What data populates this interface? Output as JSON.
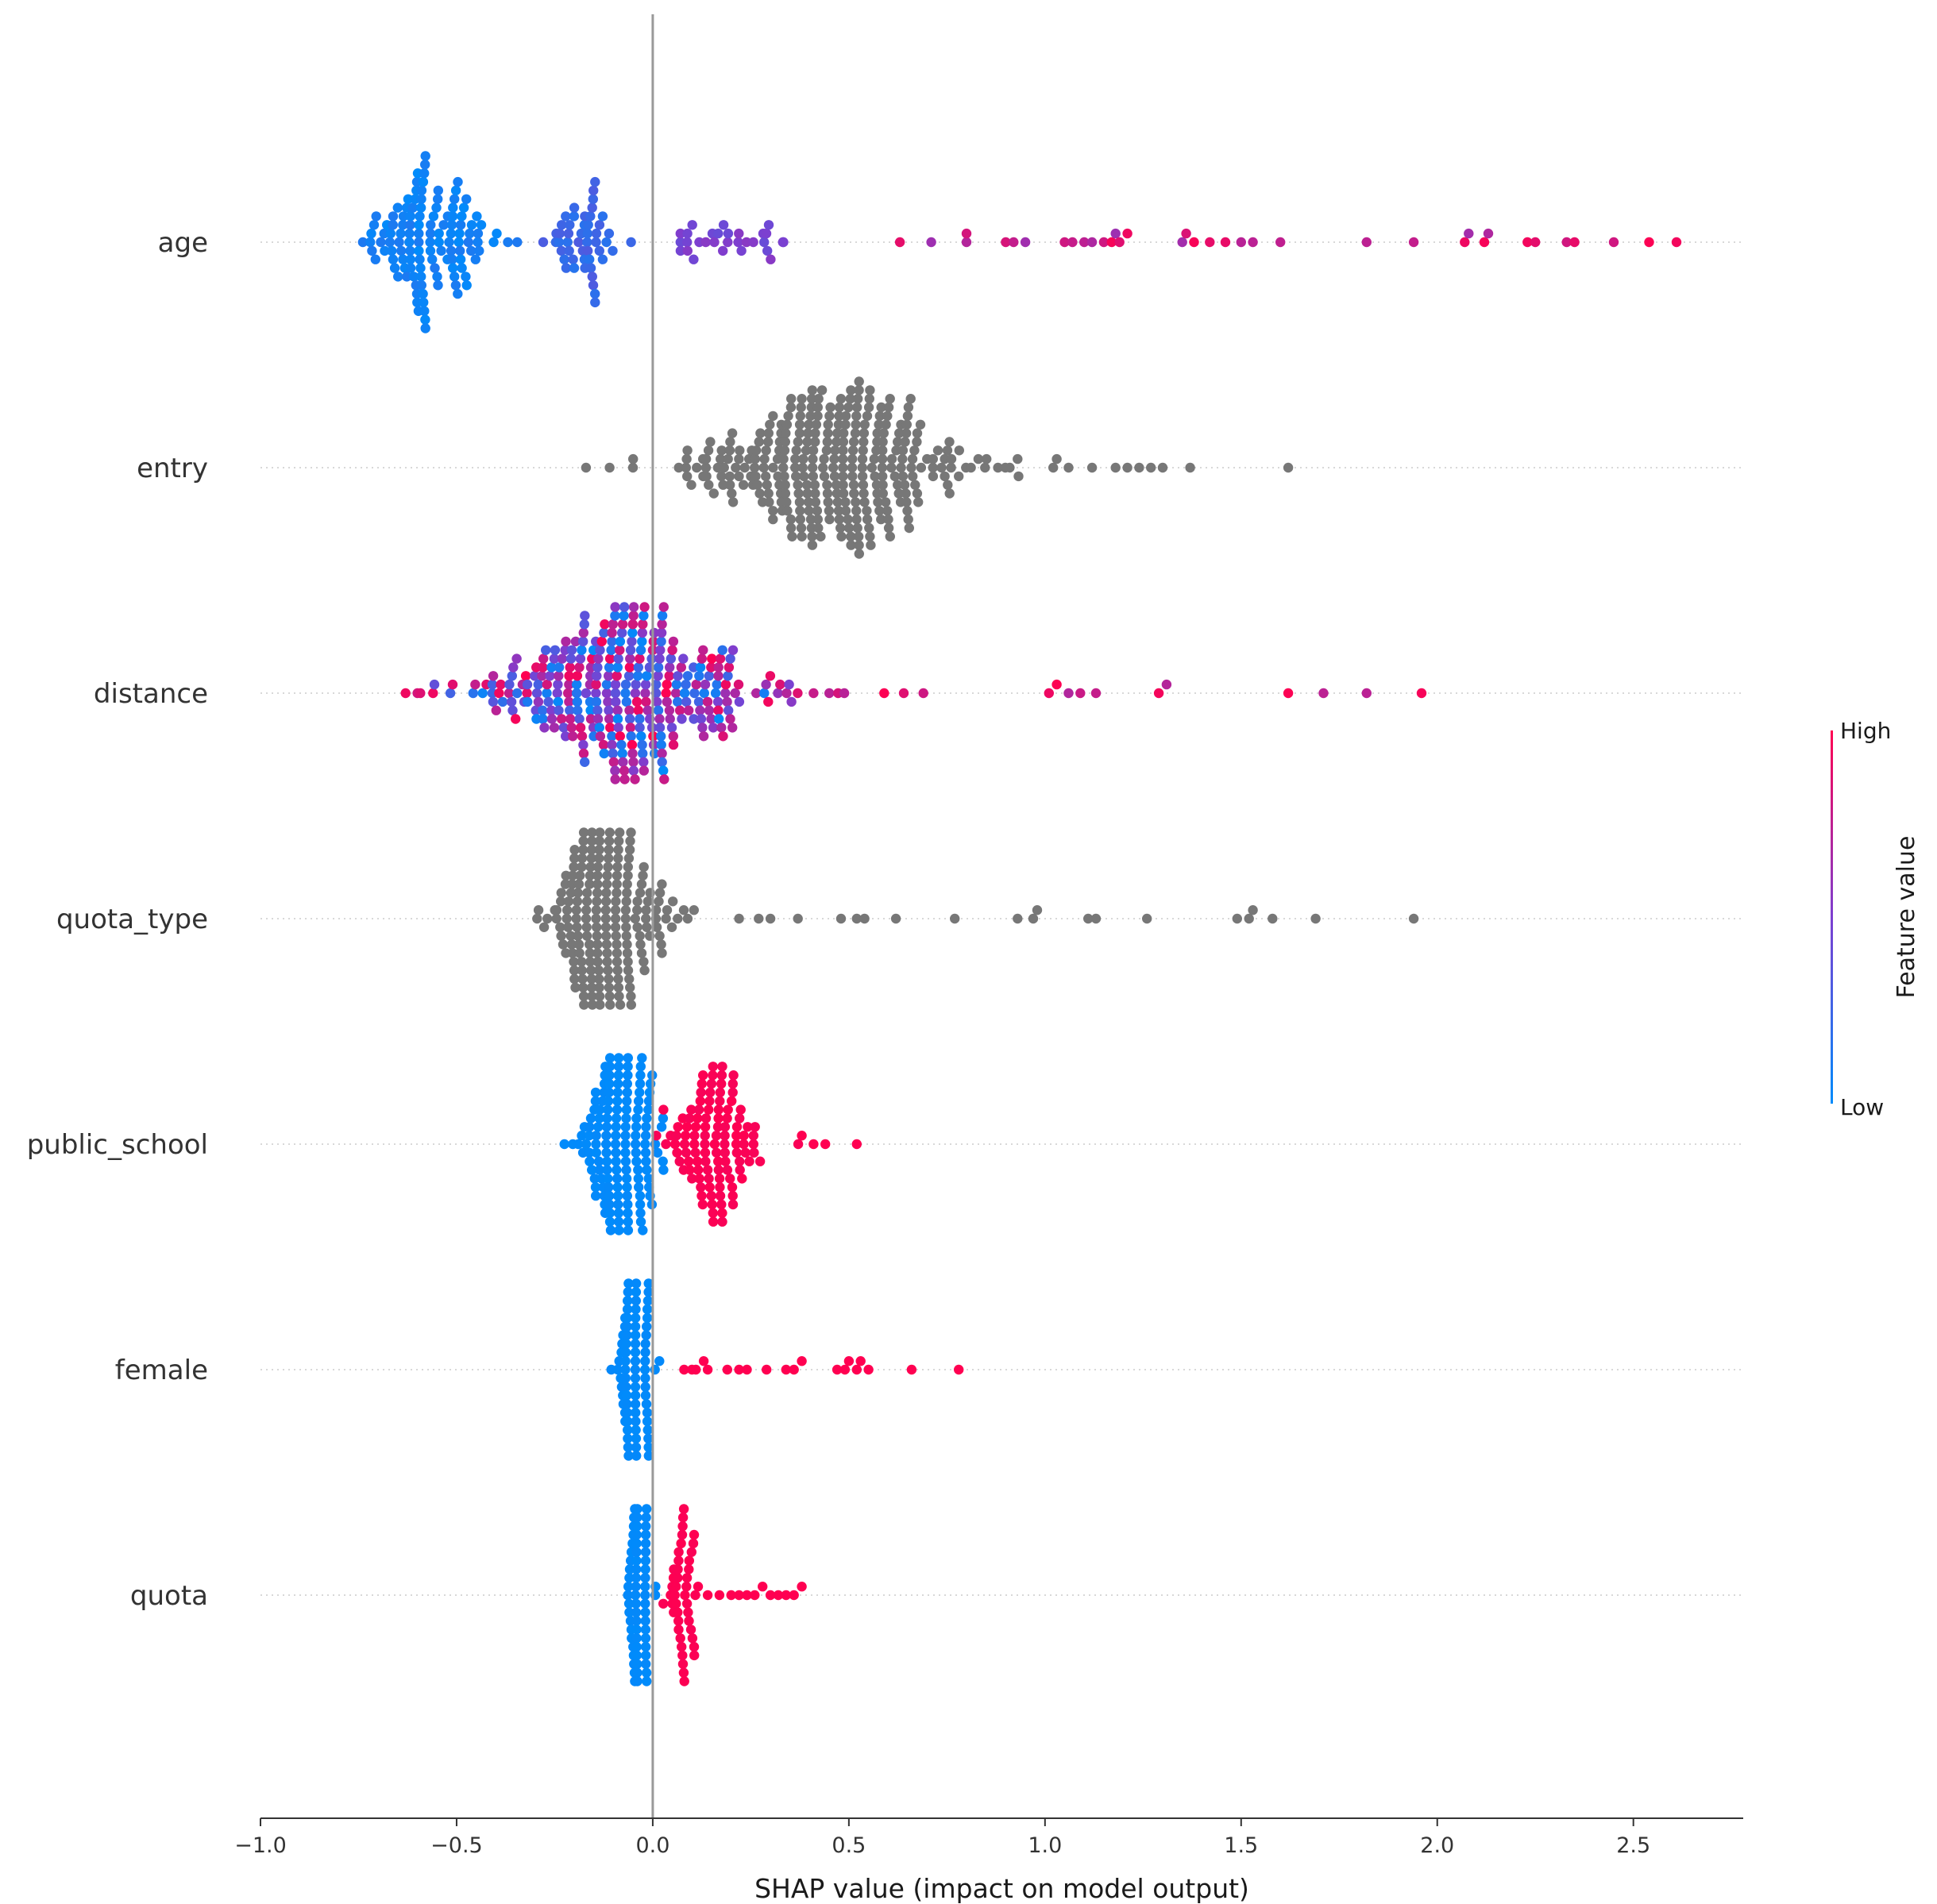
{
  "chart_data": {
    "type": "scatter",
    "subtype": "shap-beeswarm",
    "title": "",
    "xlabel": "SHAP value (impact on model output)",
    "xlim": [
      -1.0,
      2.78
    ],
    "xticks": [
      -1.0,
      -0.5,
      0.0,
      0.5,
      1.0,
      1.5,
      2.0,
      2.5
    ],
    "xtick_labels": [
      "−1.0",
      "−0.5",
      "0.0",
      "0.5",
      "1.0",
      "1.5",
      "2.0",
      "2.5"
    ],
    "reference_line_x": 0.0,
    "colorbar": {
      "title": "Feature value",
      "high_label": "High",
      "low_label": "Low",
      "high_color": "#ff0051",
      "low_color": "#008bfb"
    },
    "colors": {
      "low": "#008bfb",
      "high": "#ff0051",
      "no_value": "#777777",
      "zero_line": "#999999"
    },
    "series": [
      {
        "name": "age",
        "color_mode": "feature_value",
        "clusters": [
          {
            "center": -0.57,
            "spread": 0.17,
            "count": 130,
            "fmin": 0.0,
            "fmax": 0.12,
            "height": 1.0
          },
          {
            "center": -0.17,
            "spread": 0.09,
            "count": 50,
            "fmin": 0.15,
            "fmax": 0.32,
            "height": 0.9
          },
          {
            "center": 0.18,
            "spread": 0.2,
            "count": 30,
            "fmin": 0.38,
            "fmax": 0.55,
            "height": 0.25
          }
        ],
        "points": [
          0.63,
          0.71,
          0.8,
          0.8,
          0.9,
          0.92,
          0.95,
          1.05,
          1.07,
          1.1,
          1.12,
          1.15,
          1.17,
          1.18,
          1.19,
          1.21,
          1.35,
          1.36,
          1.38,
          1.42,
          1.46,
          1.5,
          1.53,
          1.6,
          1.82,
          1.94,
          2.07,
          2.08,
          2.12,
          2.13,
          2.23,
          2.25,
          2.33,
          2.35,
          2.45,
          2.54,
          2.61
        ],
        "points_fmin": 0.6,
        "points_fmax": 1.0
      },
      {
        "name": "entry",
        "color_mode": "none",
        "clusters": [
          {
            "center": 0.45,
            "spread": 0.3,
            "count": 330,
            "height": 1.0
          }
        ],
        "points": [
          -0.17,
          -0.11,
          -0.05,
          0.78,
          0.83,
          0.88,
          0.91,
          0.93,
          1.03,
          1.06,
          1.12,
          1.18,
          1.21,
          1.24,
          1.27,
          1.3,
          1.37,
          1.62
        ]
      },
      {
        "name": "distance",
        "color_mode": "feature_value",
        "clusters": [
          {
            "center": -0.08,
            "spread": 0.36,
            "count": 330,
            "fmin": 0.0,
            "fmax": 1.0,
            "height": 1.0
          }
        ],
        "points": [
          -0.63,
          -0.6,
          -0.56,
          0.41,
          0.45,
          0.59,
          0.64,
          0.69,
          1.01,
          1.03,
          1.06,
          1.09,
          1.13,
          1.29,
          1.31,
          1.62,
          1.71,
          1.82,
          1.96
        ],
        "points_fmin": 0.7,
        "points_fmax": 1.0
      },
      {
        "name": "quota_type",
        "color_mode": "none",
        "clusters": [
          {
            "center": -0.12,
            "spread": 0.12,
            "count": 280,
            "height": 1.0
          },
          {
            "center": 0.05,
            "spread": 0.06,
            "count": 14,
            "height": 0.15
          }
        ],
        "points": [
          0.22,
          0.27,
          0.3,
          0.37,
          0.48,
          0.52,
          0.54,
          0.62,
          0.77,
          0.93,
          0.97,
          0.98,
          1.11,
          1.13,
          1.26,
          1.49,
          1.52,
          1.53,
          1.58,
          1.69,
          1.94
        ]
      },
      {
        "name": "public_school",
        "color_mode": "feature_value",
        "clusters": [
          {
            "center": -0.08,
            "spread": 0.09,
            "count": 230,
            "fmin": 0.0,
            "fmax": 0.02,
            "height": 1.0
          },
          {
            "center": 0.16,
            "spread": 0.12,
            "count": 110,
            "fmin": 0.97,
            "fmax": 1.0,
            "height": 0.45
          }
        ],
        "points": [
          0.38,
          0.41,
          0.44,
          0.52
        ],
        "points_fmin": 1.0,
        "points_fmax": 1.0
      },
      {
        "name": "female",
        "color_mode": "feature_value",
        "clusters": [
          {
            "center": -0.04,
            "spread": 0.035,
            "count": 280,
            "fmin": 0.0,
            "fmax": 0.02,
            "height": 1.0
          }
        ],
        "points": [
          0.08,
          0.1,
          0.11,
          0.13,
          0.14,
          0.19,
          0.22,
          0.24,
          0.29,
          0.34,
          0.36,
          0.38,
          0.47,
          0.49,
          0.5,
          0.52,
          0.53,
          0.55,
          0.66,
          0.78
        ],
        "points_fmin": 1.0,
        "points_fmax": 1.0
      },
      {
        "name": "quota",
        "color_mode": "feature_value",
        "clusters": [
          {
            "center": -0.03,
            "spread": 0.025,
            "count": 260,
            "fmin": 0.0,
            "fmax": 0.02,
            "height": 1.0
          },
          {
            "center": 0.08,
            "spread": 0.04,
            "count": 45,
            "fmin": 0.98,
            "fmax": 1.0,
            "height": 0.12
          }
        ],
        "points": [
          0.14,
          0.17,
          0.2,
          0.22,
          0.24,
          0.26,
          0.28,
          0.3,
          0.32,
          0.34,
          0.36,
          0.38
        ],
        "points_fmin": 1.0,
        "points_fmax": 1.0
      }
    ]
  }
}
